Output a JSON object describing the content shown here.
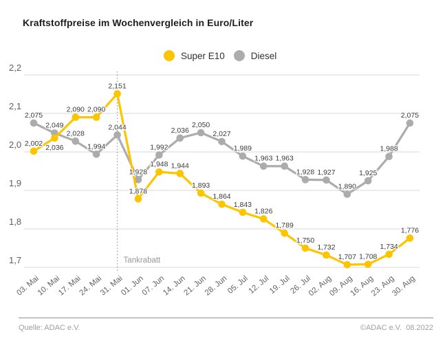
{
  "title": "Kraftstoffpreise im Wochenvergleich in Euro/Liter",
  "footer": {
    "source": "Quelle: ADAC e.V.",
    "copyright": "©ADAC e.V.  08.2022"
  },
  "chart_data": {
    "type": "line",
    "title": "Kraftstoffpreise im Wochenvergleich in Euro/Liter",
    "unit": "Euro/Liter",
    "categories": [
      "03. Mai",
      "10. Mai",
      "17. Mai",
      "24. Mai",
      "31. Mai",
      "01. Jun",
      "07. Jun",
      "14. Jun",
      "21. Jun",
      "28. Jun",
      "05. Jul",
      "12. Jul",
      "19. Jul",
      "26. Jul",
      "02. Aug",
      "09. Aug",
      "16. Aug",
      "23. Aug",
      "30. Aug"
    ],
    "series": [
      {
        "name": "Super E10",
        "color": "#FCC500",
        "values": [
          2.002,
          2.036,
          2.09,
          2.09,
          2.151,
          1.878,
          1.948,
          1.944,
          1.893,
          1.864,
          1.843,
          1.826,
          1.789,
          1.75,
          1.732,
          1.707,
          1.708,
          1.734,
          1.776
        ]
      },
      {
        "name": "Diesel",
        "color": "#ACACAC",
        "values": [
          2.075,
          2.049,
          2.028,
          1.994,
          2.044,
          1.928,
          1.992,
          2.036,
          2.05,
          2.027,
          1.989,
          1.963,
          1.963,
          1.928,
          1.927,
          1.89,
          1.925,
          1.988,
          2.075
        ]
      }
    ],
    "ylim": [
      1.7,
      2.2
    ],
    "yticks": [
      2.2,
      2.1,
      2.0,
      1.9,
      1.8,
      1.7
    ],
    "grid": true,
    "legend_position": "top",
    "value_format": "german-comma-3-decimals",
    "annotation": {
      "label": "Tankrabatt",
      "category": "31. Mai",
      "category_index": 4
    }
  }
}
